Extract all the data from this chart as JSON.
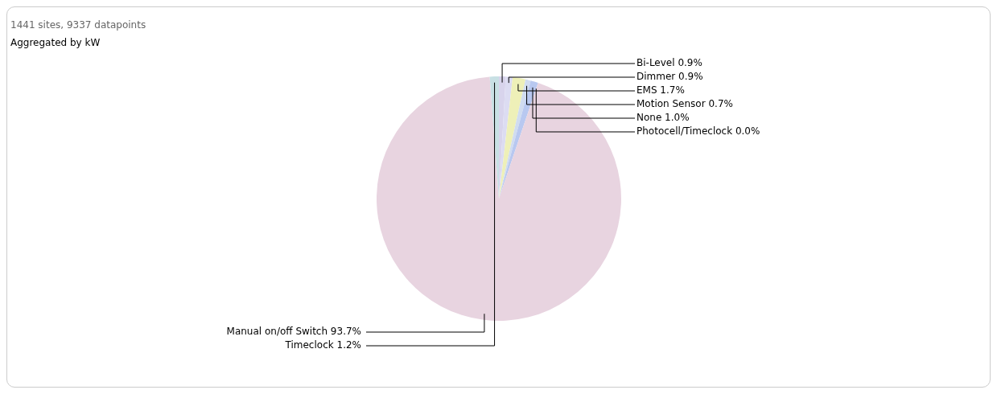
{
  "chart_data": {
    "type": "pie",
    "title": "1441 sites, 9337 datapoints",
    "subtitle": "Aggregated by kW",
    "categories": [
      "Bi-Level",
      "Dimmer",
      "EMS",
      "Motion Sensor",
      "None",
      "Photocell/Timeclock",
      "Manual on/off Switch",
      "Timeclock"
    ],
    "values": [
      0.9,
      0.9,
      1.7,
      0.7,
      1.0,
      0.0,
      93.7,
      1.2
    ],
    "value_labels": [
      "0.9%",
      "0.9%",
      "1.7%",
      "0.7%",
      "1.0%",
      "0.0%",
      "93.7%",
      "1.2%"
    ],
    "colors": [
      "#d8d4ec",
      "#dcdcf2",
      "#eef0b8",
      "#d0dcf0",
      "#b8c8f0",
      "#c0c0e0",
      "#e8d4e0",
      "#c8e0e4"
    ],
    "legend": false
  }
}
